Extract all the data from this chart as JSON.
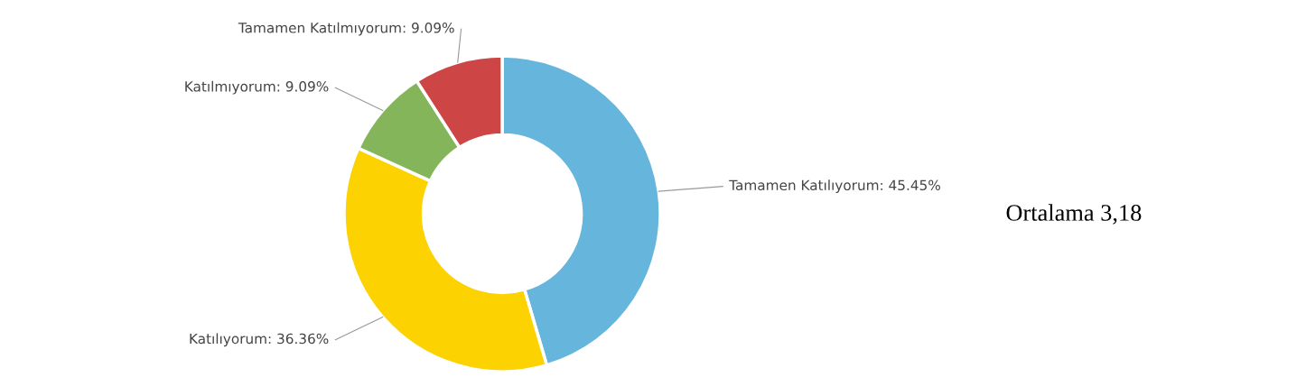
{
  "chart_data": {
    "type": "donut",
    "categories": [
      "Tamamen Katılıyorum",
      "Katılıyorum",
      "Katılmıyorum",
      "Tamamen Katılmıyorum"
    ],
    "values": [
      45.45,
      36.36,
      9.09,
      9.09
    ],
    "value_labels": [
      "45.45%",
      "36.36%",
      "9.09%",
      "9.09%"
    ],
    "colors": [
      "#65b5dc",
      "#fcd200",
      "#85b55b",
      "#cd4545"
    ],
    "annotations": [
      "Ortalama 3,18"
    ],
    "legend": false
  }
}
